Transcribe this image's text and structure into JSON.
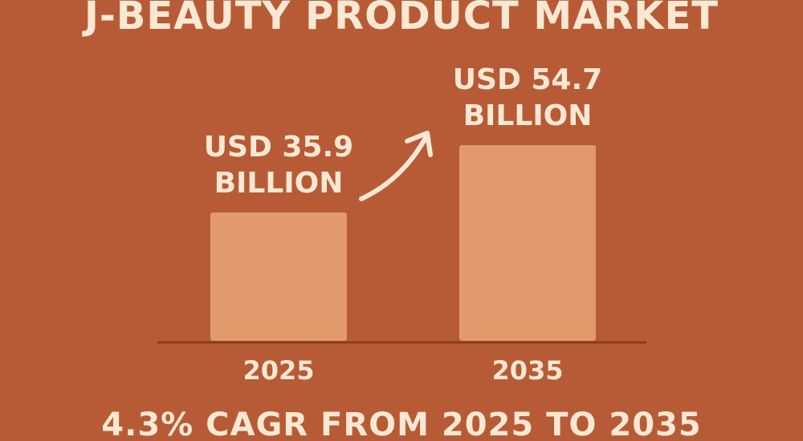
{
  "chart_data": {
    "type": "bar",
    "title": "J-BEAUTY PRODUCT MARKET",
    "subtitle": "4.3% CAGR FROM 2025 TO 2035",
    "categories": [
      "2025",
      "2035"
    ],
    "values": [
      35.9,
      54.7
    ],
    "value_labels": [
      "USD 35.9 BILLION",
      "USD 54.7 BILLION"
    ],
    "color": "#e29a6d"
  }
}
